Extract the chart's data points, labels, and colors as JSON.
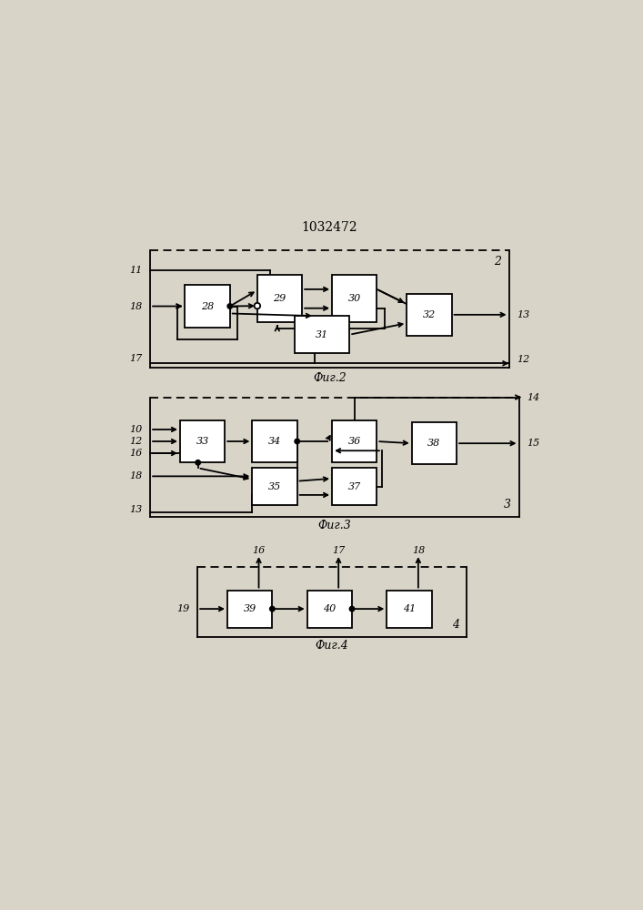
{
  "title": "1032472",
  "bg_color": "#d8d4c8",
  "fig2": {
    "caption": "Фиг.2",
    "corner": "2",
    "border": [
      0.14,
      0.685,
      0.86,
      0.92
    ],
    "blocks": {
      "28": [
        0.21,
        0.765,
        0.09,
        0.085
      ],
      "29": [
        0.355,
        0.775,
        0.09,
        0.095
      ],
      "30": [
        0.505,
        0.775,
        0.09,
        0.095
      ],
      "31": [
        0.43,
        0.713,
        0.11,
        0.075
      ],
      "32": [
        0.655,
        0.748,
        0.09,
        0.085
      ]
    }
  },
  "fig3": {
    "caption": "Фиг.3",
    "corner": "3",
    "border": [
      0.14,
      0.385,
      0.88,
      0.625
    ],
    "blocks": {
      "33": [
        0.2,
        0.494,
        0.09,
        0.085
      ],
      "34": [
        0.345,
        0.494,
        0.09,
        0.085
      ],
      "35": [
        0.345,
        0.408,
        0.09,
        0.075
      ],
      "36": [
        0.505,
        0.494,
        0.09,
        0.085
      ],
      "37": [
        0.505,
        0.408,
        0.09,
        0.075
      ],
      "38": [
        0.665,
        0.49,
        0.09,
        0.085
      ]
    }
  },
  "fig4": {
    "caption": "Фиг.4",
    "corner": "4",
    "border": [
      0.235,
      0.145,
      0.775,
      0.285
    ],
    "blocks": {
      "39": [
        0.295,
        0.163,
        0.09,
        0.075
      ],
      "40": [
        0.455,
        0.163,
        0.09,
        0.075
      ],
      "41": [
        0.615,
        0.163,
        0.09,
        0.075
      ]
    }
  }
}
